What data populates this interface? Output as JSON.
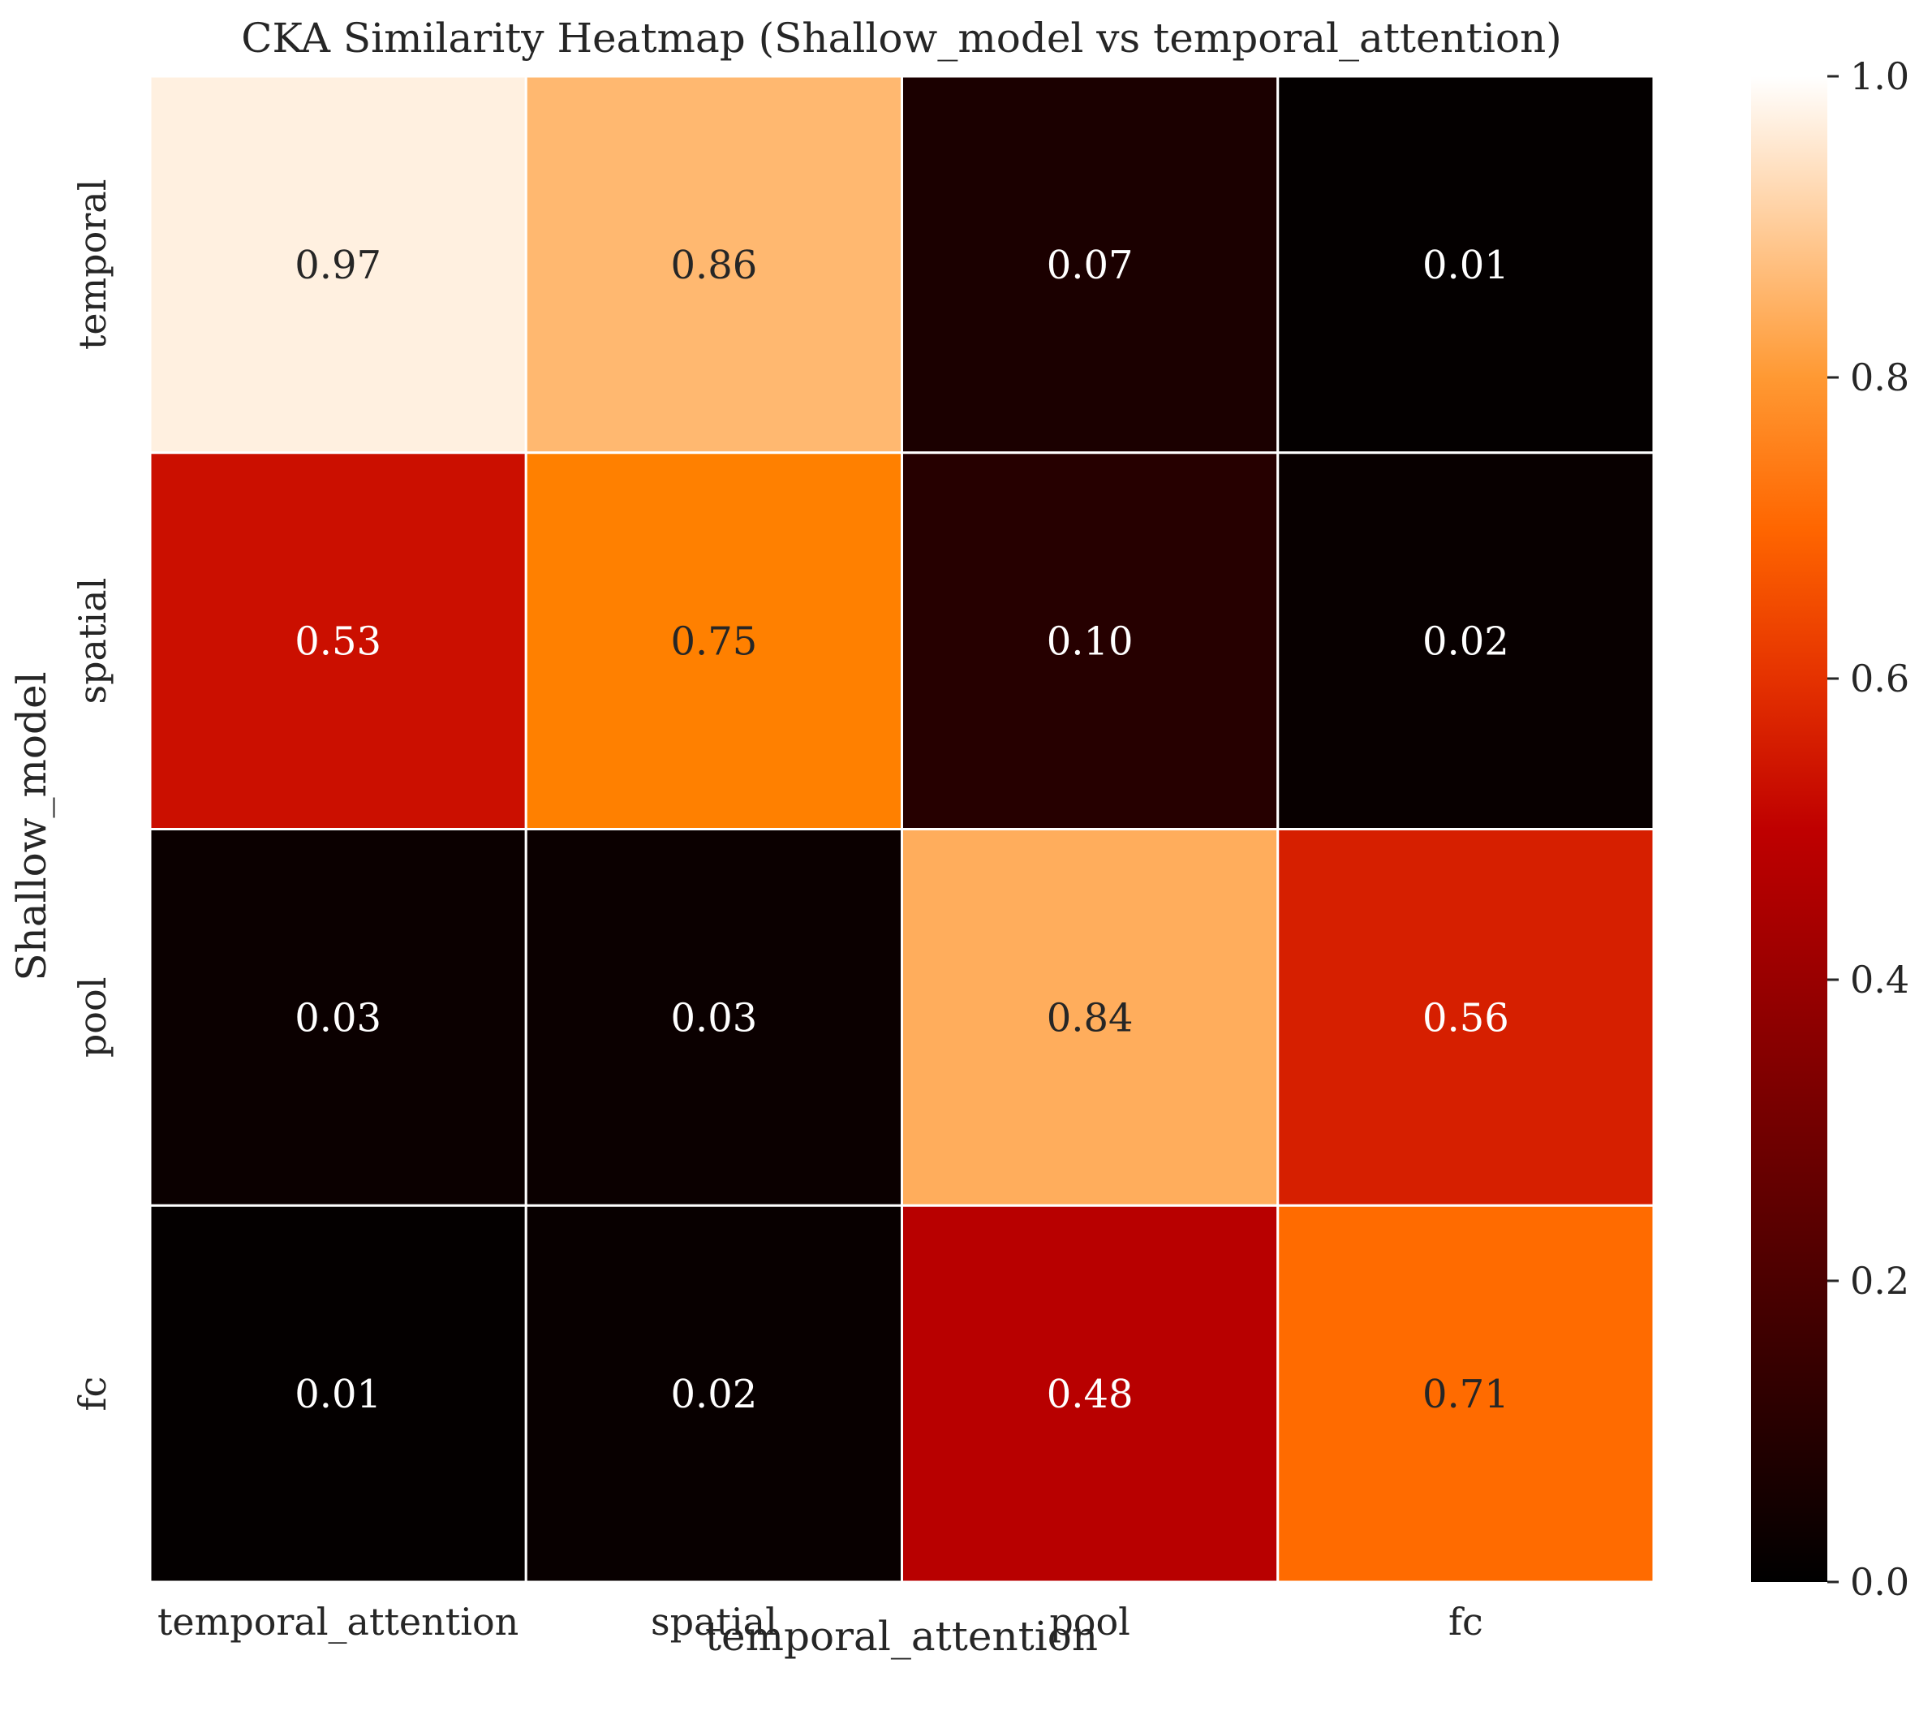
{
  "chart_data": {
    "type": "heatmap",
    "title": "CKA Similarity Heatmap (Shallow_model vs temporal_attention)",
    "xlabel": "temporal_attention",
    "ylabel": "Shallow_model",
    "x_categories": [
      "temporal_attention",
      "spatial",
      "pool",
      "fc"
    ],
    "y_categories": [
      "temporal",
      "spatial",
      "pool",
      "fc"
    ],
    "values": [
      [
        0.97,
        0.86,
        0.07,
        0.01
      ],
      [
        0.53,
        0.75,
        0.1,
        0.02
      ],
      [
        0.03,
        0.03,
        0.84,
        0.56
      ],
      [
        0.01,
        0.02,
        0.48,
        0.71
      ]
    ],
    "value_labels": [
      [
        "0.97",
        "0.86",
        "0.07",
        "0.01"
      ],
      [
        "0.53",
        "0.75",
        "0.10",
        "0.02"
      ],
      [
        "0.03",
        "0.03",
        "0.84",
        "0.56"
      ],
      [
        "0.01",
        "0.02",
        "0.48",
        "0.71"
      ]
    ],
    "colormap": "gist_heat",
    "vmin": 0.0,
    "vmax": 1.0,
    "colorbar_ticks": [
      "0.0",
      "0.2",
      "0.4",
      "0.6",
      "0.8",
      "1.0"
    ],
    "cell_border_color": "#ffffff",
    "annotation_color_dark_bg": "#ffffff",
    "annotation_color_light_bg": "#262626"
  }
}
